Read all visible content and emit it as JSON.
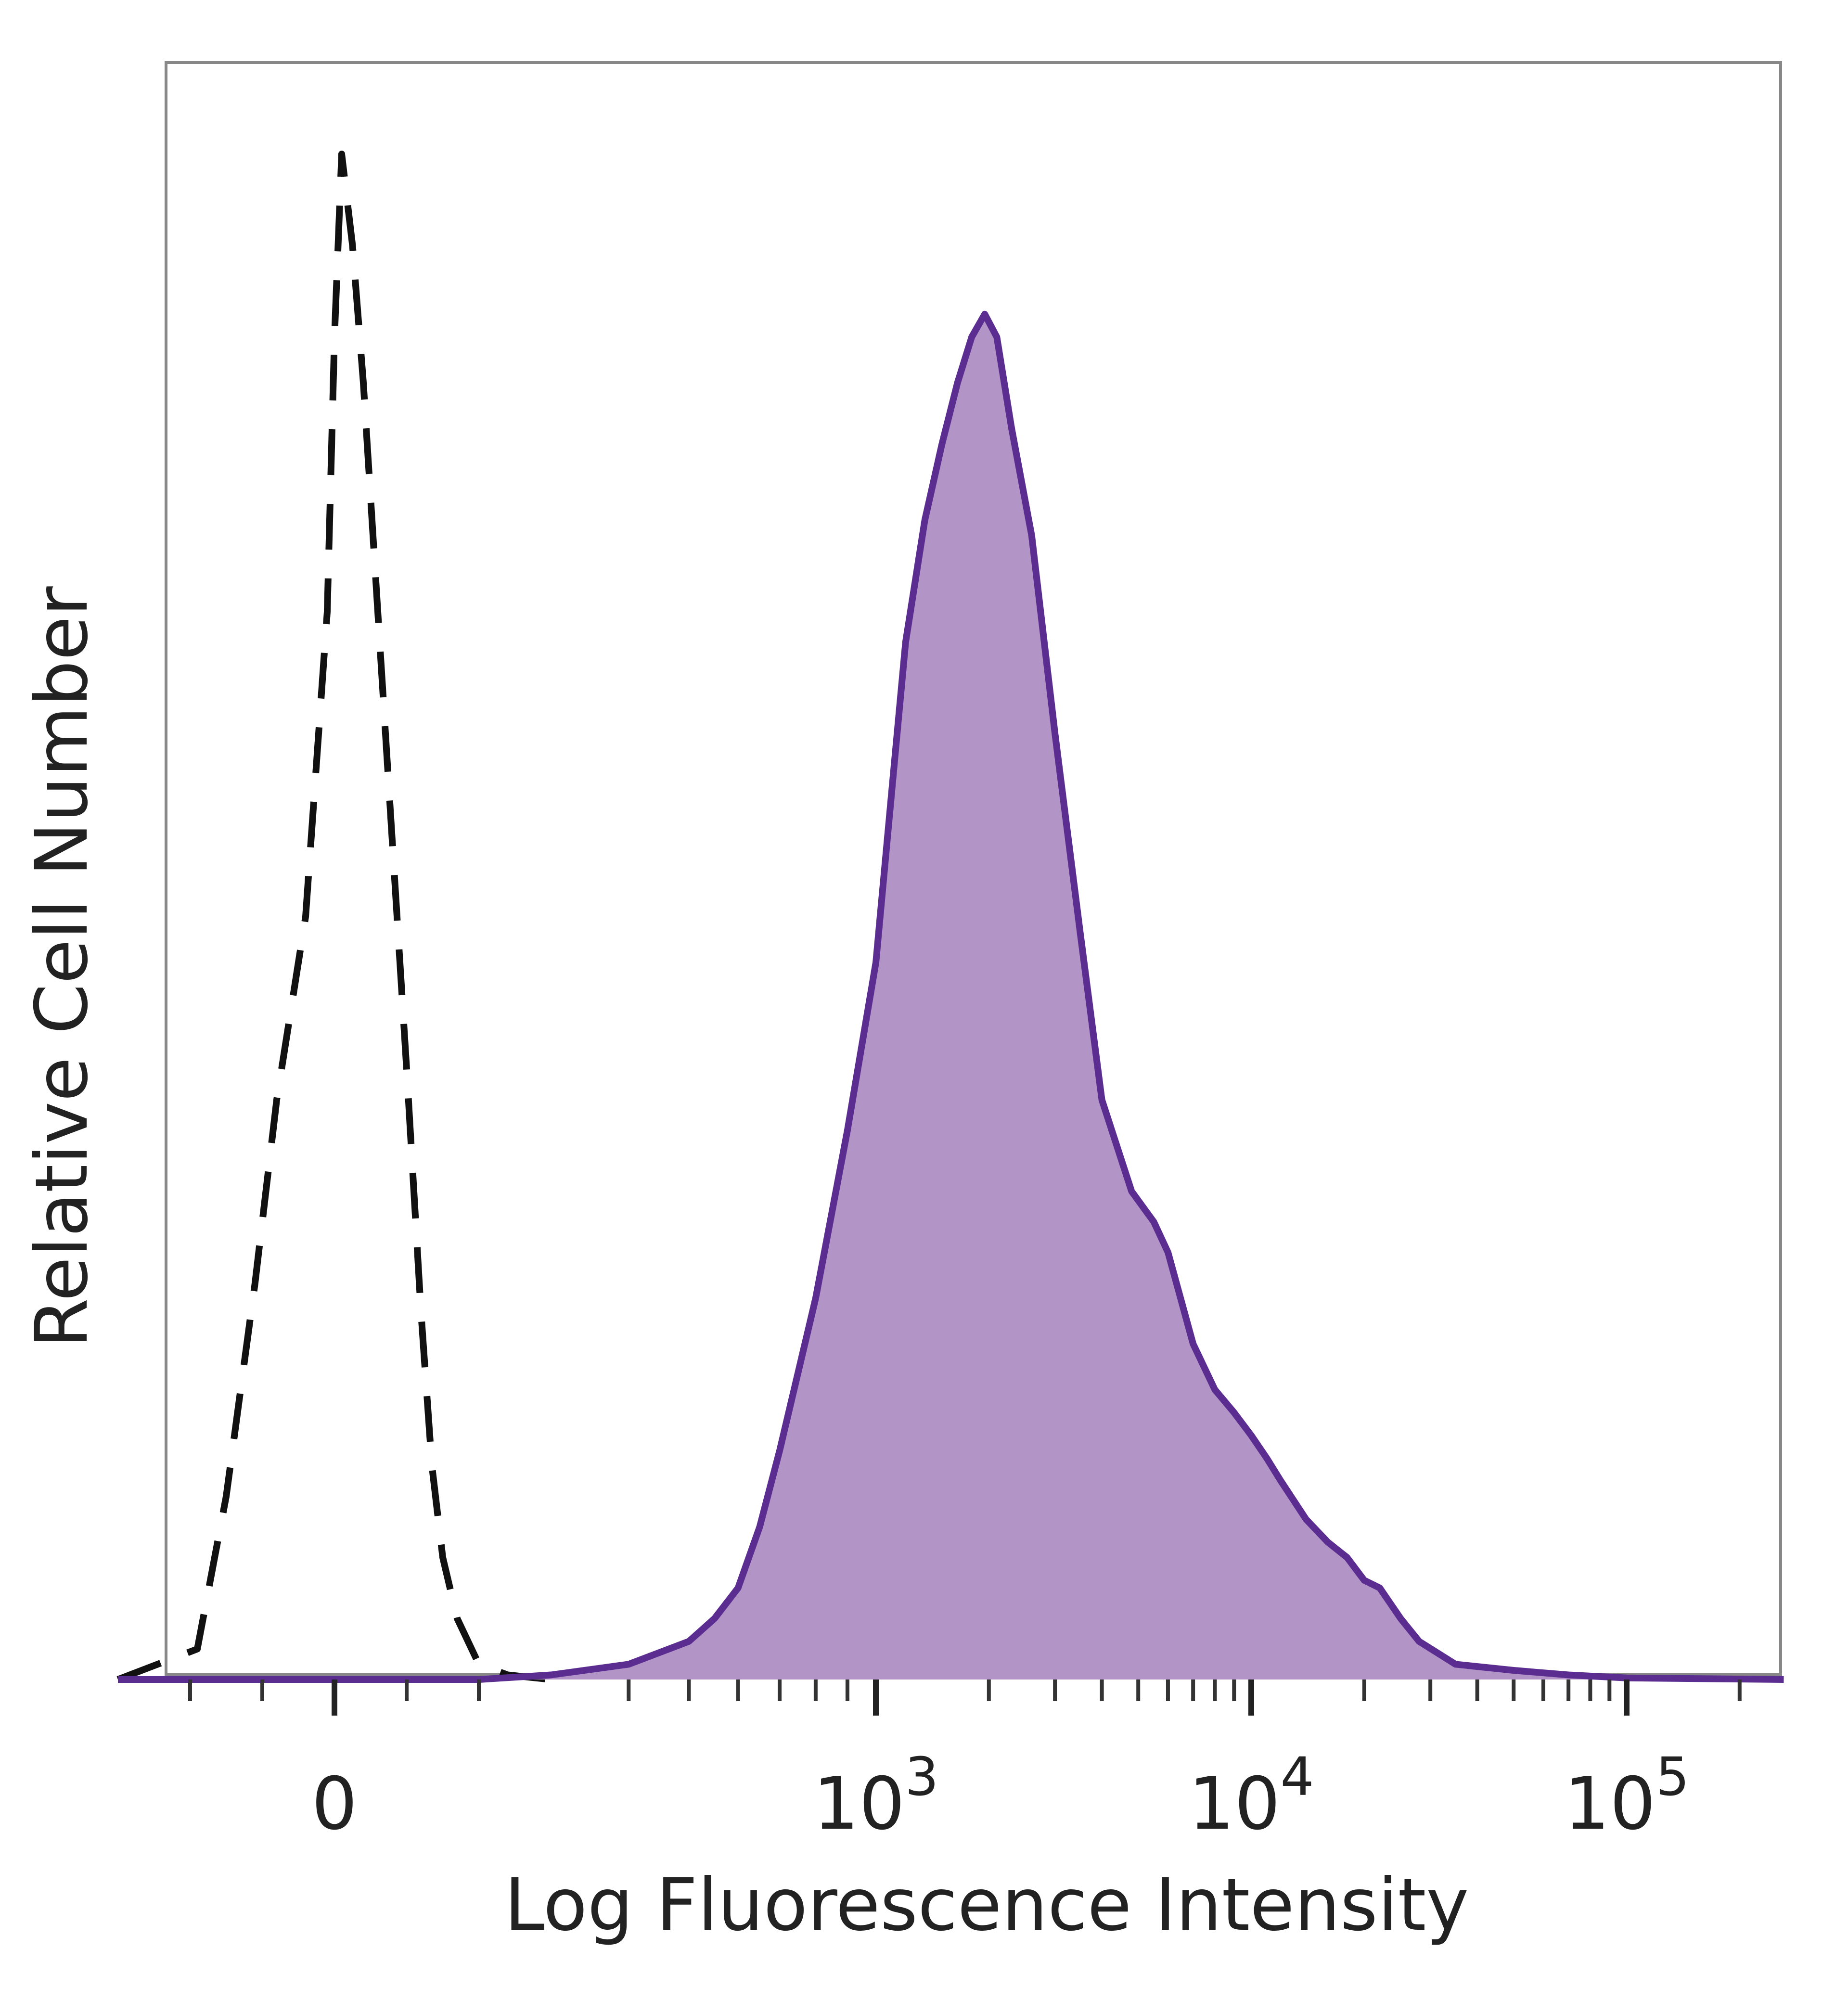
{
  "chart_data": {
    "type": "area",
    "xlabel": "Log Fluorescence Intensity",
    "ylabel": "Relative Cell Number",
    "x_scale": "biexponential",
    "x_ticks": [
      {
        "value": 0,
        "base": "0",
        "exp": ""
      },
      {
        "value": 1000,
        "base": "10",
        "exp": "3"
      },
      {
        "value": 10000,
        "base": "10",
        "exp": "4"
      },
      {
        "value": 100000,
        "base": "10",
        "exp": "5"
      }
    ],
    "xlim": [
      -300,
      262144
    ],
    "ylim": [
      0,
      100
    ],
    "grid": false,
    "colors": {
      "sample_line": "#5b2d91",
      "sample_fill": "#b294c6",
      "control_line": "#111111",
      "axis": "#777777"
    },
    "series": [
      {
        "style": "dashed",
        "x": [
          -300,
          -190,
          -150,
          -110,
          -80,
          -40,
          -10,
          0,
          10,
          25,
          40,
          60,
          80,
          100,
          120,
          135,
          150,
          170,
          200,
          240,
          300
        ],
        "y": [
          0,
          2,
          12,
          26,
          38,
          50,
          70,
          88,
          100,
          94,
          85,
          70,
          55,
          40,
          24,
          14,
          8,
          4,
          1,
          0.3,
          0
        ]
      },
      {
        "style": "filled",
        "x": [
          -300,
          100,
          200,
          300,
          400,
          500,
          550,
          600,
          650,
          700,
          800,
          900,
          1000,
          1100,
          1200,
          1350,
          1500,
          1650,
          1800,
          1950,
          2100,
          2300,
          2600,
          3000,
          3500,
          4000,
          4800,
          5500,
          6000,
          7000,
          8000,
          9000,
          10000,
          11000,
          12000,
          14000,
          16000,
          18000,
          20000,
          22000,
          25000,
          28000,
          35000,
          50000,
          70000,
          100000,
          262144
        ],
        "y": [
          0,
          0,
          0,
          0.3,
          1,
          2.5,
          4,
          6,
          10,
          15,
          25,
          36,
          47,
          58,
          68,
          76,
          81,
          85,
          88,
          89.5,
          88,
          82,
          75,
          62,
          49,
          38,
          32,
          30,
          28,
          22,
          19,
          17.5,
          16,
          14.5,
          13,
          10.5,
          9,
          8,
          6.5,
          6,
          4,
          2.5,
          1,
          0.6,
          0.3,
          0.1,
          0
        ]
      }
    ]
  }
}
